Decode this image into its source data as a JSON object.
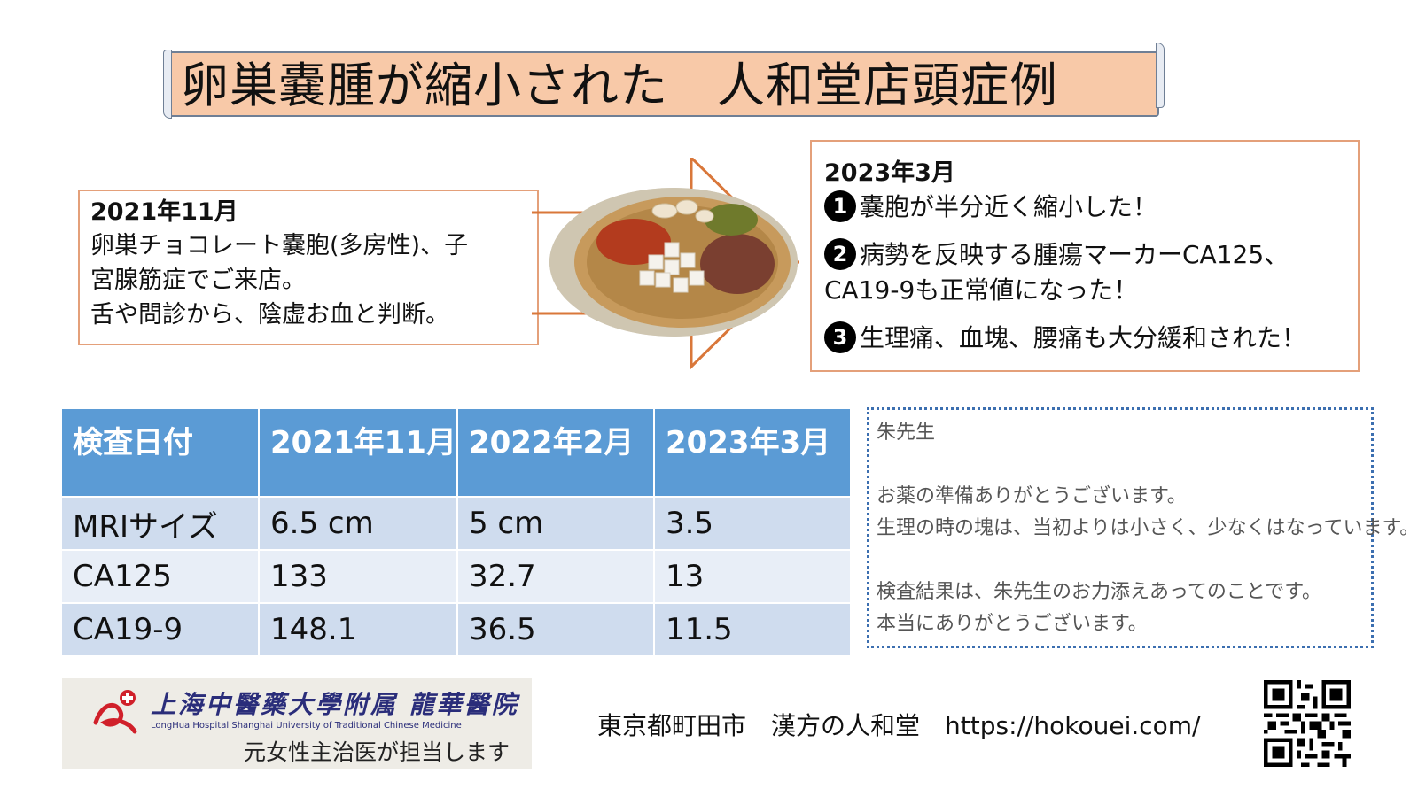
{
  "title": "卵巣嚢腫が縮小された　人和堂店頭症例",
  "before": {
    "date": "2021年11月",
    "lines": [
      "卵巣チョコレート嚢胞(多房性)、子",
      "宮腺筋症でご来店。",
      "舌や問診から、陰虚お血と判断。"
    ]
  },
  "after": {
    "date": "2023年3月",
    "points": [
      {
        "num": "1",
        "lines": [
          "嚢胞が半分近く縮小した！"
        ]
      },
      {
        "num": "2",
        "lines": [
          "病勢を反映する腫瘍マーカーCA125、",
          "CA19-9も正常値になった！"
        ]
      },
      {
        "num": "3",
        "lines": [
          "生理痛、血塊、腰痛も大分緩和された！"
        ]
      }
    ]
  },
  "table": {
    "headers": [
      "検査日付",
      "2021年11月",
      "2022年2月",
      "2023年3月"
    ],
    "rows": [
      [
        "MRIサイズ",
        "6.5 cm",
        "5 cm",
        "3.5"
      ],
      [
        "CA125",
        "133",
        "32.7",
        "13"
      ],
      [
        "CA19-9",
        "148.1",
        "36.5",
        "11.5"
      ]
    ]
  },
  "message": {
    "to": "朱先生",
    "lines1": [
      "お薬の準備ありがとうございます。",
      "生理の時の塊は、当初よりは小さく、少なくはなっています。"
    ],
    "lines2": [
      "検査結果は、朱先生のお力添えあってのことです。",
      "本当にありがとうございます。"
    ]
  },
  "footer": {
    "logo_cn": "上海中醫藥大學附属 龍華醫院",
    "logo_en": "LongHua Hospital Shanghai University of  Traditional Chinese Medicine",
    "logo_jp": "元女性主治医が担当します",
    "shop": "東京都町田市　漢方の人和堂　https://hokouei.com/"
  },
  "colors": {
    "title_bg": "#f8c9a8",
    "box_border": "#e4a07a",
    "table_header": "#5b9bd5",
    "table_row": "#cfdcee",
    "message_border": "#3c6fb0"
  }
}
